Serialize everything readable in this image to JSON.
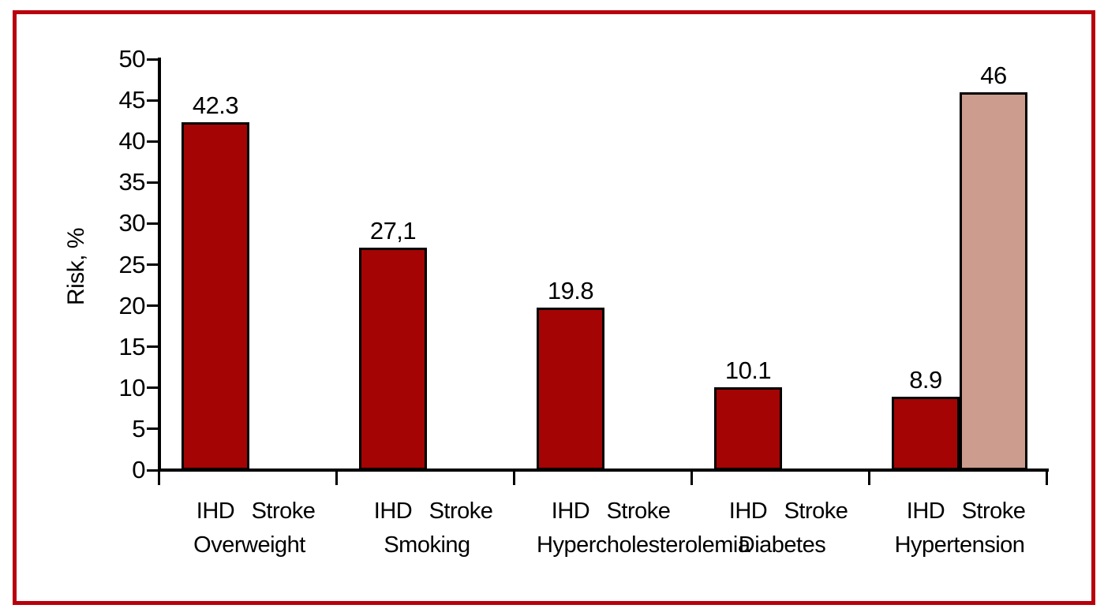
{
  "frame": {
    "border_color": "#b8010c"
  },
  "chart_data": {
    "type": "bar",
    "title": "",
    "xlabel": "",
    "ylabel": "Risk, %",
    "ylim": [
      0,
      50
    ],
    "ytick_step": 5,
    "yticks": [
      0,
      5,
      10,
      15,
      20,
      25,
      30,
      35,
      40,
      45,
      50
    ],
    "grid": false,
    "legend_position": "none",
    "categories": [
      "Overweight",
      "Smoking",
      "Hypercholesterolemia",
      "Diabetes",
      "Hypertension"
    ],
    "series": [
      {
        "name": "IHD",
        "color": "#a40404",
        "values": [
          42.3,
          27.1,
          19.8,
          10.1,
          8.9
        ],
        "value_labels": [
          "42.3",
          "27,1",
          "19.8",
          "10.1",
          "8.9"
        ]
      },
      {
        "name": "Stroke",
        "color": "#cc9c8e",
        "values": [
          null,
          null,
          null,
          null,
          46
        ],
        "value_labels": [
          null,
          null,
          null,
          null,
          "46"
        ]
      }
    ],
    "bar_edge_color": "#000000",
    "axis_color": "#000000"
  }
}
